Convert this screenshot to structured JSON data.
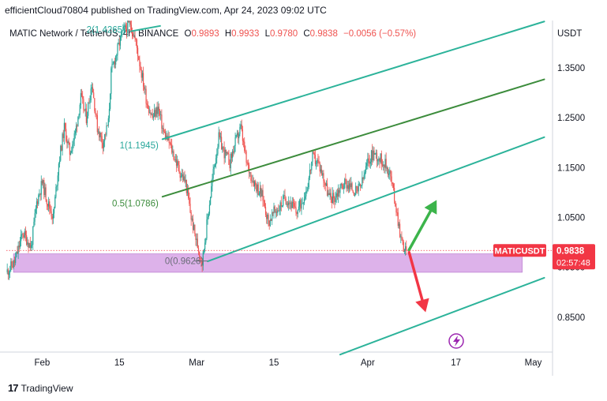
{
  "header": "efficientCloud70804 published on TradingView.com, Apr 24, 2023 09:02 UTC",
  "footer": {
    "logo_text": "17",
    "brand": "TradingView"
  },
  "colors": {
    "up": "#26a69a",
    "down": "#ef5350",
    "channel": "#2cb39a",
    "midline": "#3c8c3c",
    "fib": "#26a69a",
    "zone": "#c77fdc",
    "arrow_up": "#3cb44b",
    "arrow_down": "#f23645",
    "price_tag": "#f23645"
  },
  "chart_data": {
    "type": "candlestick",
    "symbol_line": {
      "name": "MATIC Network / TetherUS, 4h, BINANCE",
      "open_label": "O",
      "open": "0.9893",
      "high_label": "H",
      "high": "0.9933",
      "low_label": "L",
      "low": "0.9780",
      "close_label": "C",
      "close": "0.9838",
      "change": "−0.0056 (−0.57%)"
    },
    "currency": "USDT",
    "y_ticks": [
      {
        "value": 1.35,
        "label": "1.3500"
      },
      {
        "value": 1.25,
        "label": "1.2500"
      },
      {
        "value": 1.15,
        "label": "1.1500"
      },
      {
        "value": 1.05,
        "label": "1.0500"
      },
      {
        "value": 0.95,
        "label": "0.9500"
      },
      {
        "value": 0.85,
        "label": "0.8500"
      }
    ],
    "x_ticks": [
      {
        "day": 6,
        "label": "Feb"
      },
      {
        "day": 20,
        "label": "15"
      },
      {
        "day": 34,
        "label": "Mar"
      },
      {
        "day": 48,
        "label": "15"
      },
      {
        "day": 65,
        "label": "Apr"
      },
      {
        "day": 81,
        "label": "17"
      },
      {
        "day": 95,
        "label": "May"
      }
    ],
    "x_range": [
      -0.5,
      98.5
    ],
    "y_range": [
      0.78,
      1.445
    ],
    "path": [
      [
        -0.5,
        0.94
      ],
      [
        1,
        0.96
      ],
      [
        2.5,
        1.02
      ],
      [
        4,
        0.99
      ],
      [
        5,
        1.08
      ],
      [
        6,
        1.12
      ],
      [
        7,
        1.08
      ],
      [
        8,
        1.05
      ],
      [
        9,
        1.16
      ],
      [
        10,
        1.23
      ],
      [
        11,
        1.18
      ],
      [
        12,
        1.22
      ],
      [
        13,
        1.29
      ],
      [
        14,
        1.25
      ],
      [
        15,
        1.32
      ],
      [
        16,
        1.23
      ],
      [
        17,
        1.2
      ],
      [
        18,
        1.24
      ],
      [
        18.5,
        1.34
      ],
      [
        19.5,
        1.38
      ],
      [
        20.5,
        1.42
      ],
      [
        22,
        1.44
      ],
      [
        23,
        1.4
      ],
      [
        24,
        1.34
      ],
      [
        25,
        1.28
      ],
      [
        26,
        1.25
      ],
      [
        27,
        1.27
      ],
      [
        28,
        1.22
      ],
      [
        29,
        1.2
      ],
      [
        30,
        1.17
      ],
      [
        31,
        1.14
      ],
      [
        32,
        1.12
      ],
      [
        33,
        1.05
      ],
      [
        34,
        1.0
      ],
      [
        35,
        0.96
      ],
      [
        36,
        1.05
      ],
      [
        37,
        1.14
      ],
      [
        38,
        1.21
      ],
      [
        39,
        1.18
      ],
      [
        40,
        1.16
      ],
      [
        41,
        1.2
      ],
      [
        42,
        1.23
      ],
      [
        43,
        1.16
      ],
      [
        44,
        1.13
      ],
      [
        45,
        1.11
      ],
      [
        46,
        1.09
      ],
      [
        47,
        1.04
      ],
      [
        48,
        1.06
      ],
      [
        49,
        1.07
      ],
      [
        50,
        1.09
      ],
      [
        51,
        1.08
      ],
      [
        52,
        1.06
      ],
      [
        53,
        1.08
      ],
      [
        54,
        1.11
      ],
      [
        55,
        1.17
      ],
      [
        56,
        1.16
      ],
      [
        57,
        1.13
      ],
      [
        58,
        1.09
      ],
      [
        59,
        1.09
      ],
      [
        60,
        1.11
      ],
      [
        61,
        1.12
      ],
      [
        62,
        1.11
      ],
      [
        63,
        1.1
      ],
      [
        64,
        1.12
      ],
      [
        65,
        1.16
      ],
      [
        66,
        1.18
      ],
      [
        67,
        1.17
      ],
      [
        68,
        1.16
      ],
      [
        69,
        1.14
      ],
      [
        70,
        1.08
      ],
      [
        71,
        1.01
      ],
      [
        71.5,
        0.99
      ],
      [
        72,
        0.982
      ]
    ],
    "last_price": {
      "value": 0.9838,
      "label": "0.9838",
      "symbol": "MATICUSDT",
      "countdown": "02:57:48"
    },
    "hidden_tick_label": "0.9500",
    "fib_levels": [
      {
        "label": "2(1.4265)",
        "value": 1.4265
      },
      {
        "label": "1(1.1945)",
        "value": 1.1945
      },
      {
        "label": "0.5(1.0786)",
        "value": 1.0786
      },
      {
        "label": "0(0.9626)",
        "value": 0.9626
      }
    ],
    "channel_lines": [
      {
        "role": "upper",
        "from": [
          27.8,
          1.2069
        ],
        "to": [
          97,
          1.443
        ]
      },
      {
        "role": "middle",
        "from": [
          27.8,
          1.0916
        ],
        "to": [
          97,
          1.327
        ]
      },
      {
        "role": "lower",
        "from": [
          36,
          0.962
        ],
        "to": [
          97,
          1.211
        ]
      },
      {
        "role": "outer",
        "from": [
          60,
          0.775
        ],
        "to": [
          97,
          0.929
        ]
      }
    ],
    "support_zone": {
      "x_from": 0.8,
      "x_to": 93,
      "low": 0.94,
      "high": 0.977
    },
    "arrows": [
      {
        "direction": "up",
        "from": [
          72.5,
          0.985
        ],
        "to": [
          77.5,
          1.085
        ]
      },
      {
        "direction": "down",
        "from": [
          72.5,
          0.98
        ],
        "to": [
          75.5,
          0.86
        ]
      }
    ]
  }
}
